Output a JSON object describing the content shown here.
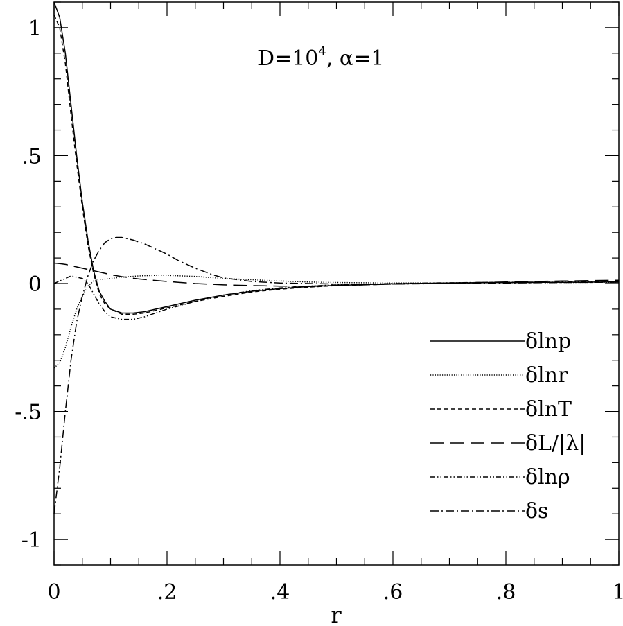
{
  "chart_data": {
    "type": "line",
    "title": "",
    "xlabel": "r",
    "ylabel": "",
    "xlim": [
      0,
      1
    ],
    "ylim": [
      -1.1,
      1.1
    ],
    "grid": false,
    "legend_position": "lower-right",
    "annotation": {
      "text": "D=10",
      "superscript": "4",
      "suffix": ",  α=1"
    },
    "x_ticks": [
      {
        "value": 0,
        "label": "0"
      },
      {
        "value": 0.2,
        "label": ".2"
      },
      {
        "value": 0.4,
        "label": ".4"
      },
      {
        "value": 0.6,
        "label": ".6"
      },
      {
        "value": 0.8,
        "label": ".8"
      },
      {
        "value": 1,
        "label": "1"
      }
    ],
    "y_ticks": [
      {
        "value": 1,
        "label": "1"
      },
      {
        "value": 0.5,
        "label": ".5"
      },
      {
        "value": 0,
        "label": "0"
      },
      {
        "value": -0.5,
        "label": "-.5"
      },
      {
        "value": -1,
        "label": "-1"
      }
    ],
    "x_minor_step": 0.05,
    "y_minor_step": 0.1,
    "series": [
      {
        "name": "δlnp",
        "dash": "solid",
        "x": [
          0,
          0.01,
          0.02,
          0.03,
          0.04,
          0.05,
          0.06,
          0.07,
          0.08,
          0.09,
          0.1,
          0.12,
          0.14,
          0.16,
          0.18,
          0.2,
          0.25,
          0.3,
          0.35,
          0.4,
          0.45,
          0.5,
          0.6,
          0.7,
          0.8,
          0.9,
          1.0
        ],
        "y": [
          1.1,
          1.04,
          0.9,
          0.7,
          0.5,
          0.32,
          0.17,
          0.05,
          -0.03,
          -0.07,
          -0.1,
          -0.115,
          -0.115,
          -0.11,
          -0.1,
          -0.09,
          -0.065,
          -0.045,
          -0.03,
          -0.02,
          -0.012,
          -0.007,
          -0.001,
          0.002,
          0.004,
          0.005,
          0.006
        ]
      },
      {
        "name": "δlnr",
        "dash": "dotted",
        "x": [
          0,
          0.01,
          0.02,
          0.03,
          0.04,
          0.05,
          0.06,
          0.07,
          0.08,
          0.1,
          0.12,
          0.15,
          0.18,
          0.2,
          0.25,
          0.3,
          0.35,
          0.4,
          0.45,
          0.5,
          0.6,
          0.7,
          0.8,
          0.9,
          1.0
        ],
        "y": [
          -0.33,
          -0.31,
          -0.25,
          -0.17,
          -0.1,
          -0.05,
          -0.01,
          0.01,
          0.015,
          0.02,
          0.025,
          0.03,
          0.032,
          0.032,
          0.028,
          0.02,
          0.015,
          0.01,
          0.006,
          0.004,
          0.002,
          0.002,
          0.003,
          0.004,
          0.005
        ]
      },
      {
        "name": "δlnT",
        "dash": "short-dash",
        "x": [
          0,
          0.01,
          0.02,
          0.03,
          0.04,
          0.05,
          0.06,
          0.07,
          0.08,
          0.09,
          0.1,
          0.12,
          0.14,
          0.16,
          0.18,
          0.2,
          0.25,
          0.3,
          0.35,
          0.4,
          0.45,
          0.5,
          0.6,
          0.7,
          0.8,
          0.9,
          1.0
        ],
        "y": [
          1.05,
          1.0,
          0.86,
          0.66,
          0.47,
          0.3,
          0.15,
          0.04,
          -0.04,
          -0.08,
          -0.1,
          -0.12,
          -0.12,
          -0.115,
          -0.105,
          -0.095,
          -0.07,
          -0.05,
          -0.033,
          -0.022,
          -0.014,
          -0.008,
          -0.002,
          0.002,
          0.004,
          0.005,
          0.006
        ]
      },
      {
        "name": "δL/|λ|",
        "dash": "long-dash",
        "x": [
          0,
          0.01,
          0.02,
          0.04,
          0.06,
          0.08,
          0.1,
          0.12,
          0.15,
          0.2,
          0.25,
          0.3,
          0.35,
          0.4,
          0.45,
          0.5,
          0.55,
          0.6,
          0.65,
          0.7,
          0.8,
          0.9,
          1.0
        ],
        "y": [
          0.08,
          0.078,
          0.075,
          0.065,
          0.055,
          0.045,
          0.035,
          0.027,
          0.018,
          0.008,
          0.0,
          -0.005,
          -0.008,
          -0.01,
          -0.01,
          -0.008,
          -0.005,
          -0.002,
          0.0,
          0.002,
          0.006,
          0.01,
          0.013
        ]
      },
      {
        "name": "δlnρ",
        "dash": "dash-dot-dot",
        "x": [
          0,
          0.01,
          0.02,
          0.03,
          0.04,
          0.05,
          0.06,
          0.07,
          0.08,
          0.09,
          0.1,
          0.12,
          0.14,
          0.16,
          0.18,
          0.2,
          0.25,
          0.3,
          0.35,
          0.4,
          0.45,
          0.5,
          0.6,
          0.7,
          0.8,
          0.9,
          1.0
        ],
        "y": [
          0.0,
          0.01,
          0.02,
          0.03,
          0.025,
          0.02,
          0.0,
          -0.04,
          -0.08,
          -0.11,
          -0.13,
          -0.14,
          -0.14,
          -0.13,
          -0.115,
          -0.1,
          -0.07,
          -0.045,
          -0.028,
          -0.017,
          -0.01,
          -0.005,
          0.0,
          0.003,
          0.005,
          0.006,
          0.007
        ]
      },
      {
        "name": "δs",
        "dash": "dash-dot",
        "x": [
          0,
          0.01,
          0.02,
          0.03,
          0.04,
          0.05,
          0.06,
          0.07,
          0.08,
          0.09,
          0.1,
          0.11,
          0.12,
          0.14,
          0.16,
          0.18,
          0.2,
          0.22,
          0.25,
          0.28,
          0.3,
          0.35,
          0.4,
          0.45,
          0.5,
          0.6,
          0.7,
          0.8,
          0.9,
          1.0
        ],
        "y": [
          -0.9,
          -0.72,
          -0.5,
          -0.3,
          -0.15,
          -0.05,
          0.03,
          0.09,
          0.13,
          0.16,
          0.175,
          0.18,
          0.18,
          0.17,
          0.155,
          0.135,
          0.115,
          0.09,
          0.06,
          0.035,
          0.022,
          0.008,
          0.002,
          0.0,
          -0.002,
          -0.002,
          0.0,
          0.002,
          0.004,
          0.005
        ]
      }
    ]
  }
}
